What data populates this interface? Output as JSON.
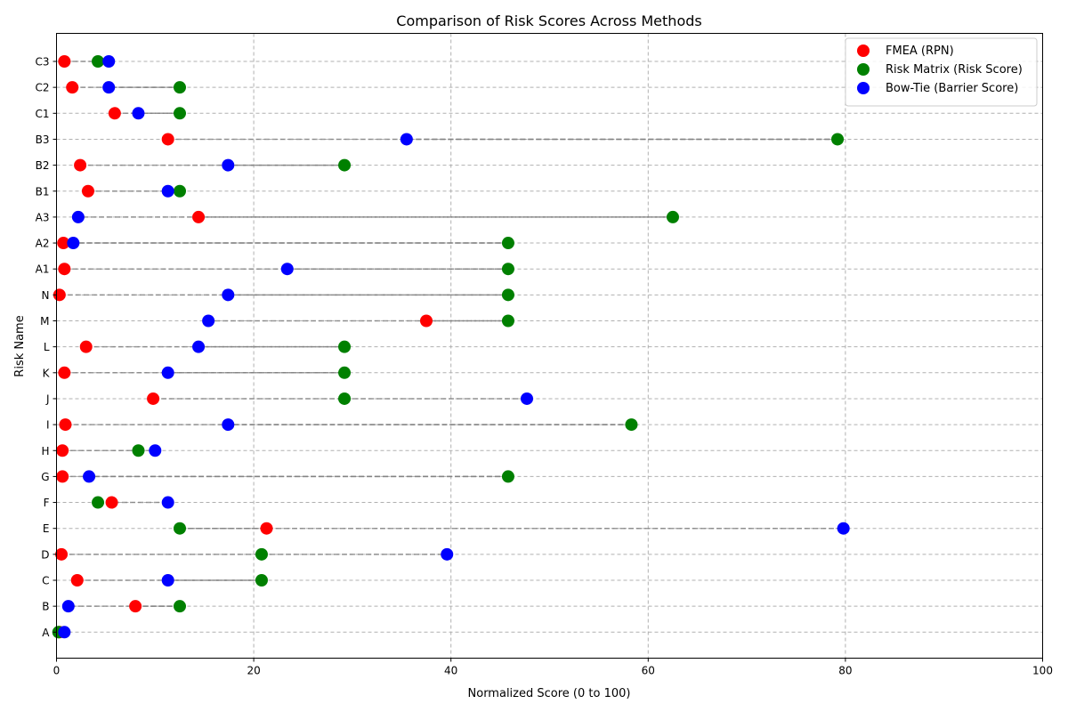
{
  "chart_data": {
    "type": "scatter",
    "title": "Comparison of Risk Scores Across Methods",
    "xlabel": "Normalized Score (0 to 100)",
    "ylabel": "Risk Name",
    "xlim": [
      0,
      100
    ],
    "xticks": [
      0,
      20,
      40,
      60,
      80,
      100
    ],
    "grid": true,
    "legend_position": "top-right",
    "categories": [
      "A",
      "B",
      "C",
      "D",
      "E",
      "F",
      "G",
      "H",
      "I",
      "J",
      "K",
      "L",
      "M",
      "N",
      "A1",
      "A2",
      "A3",
      "B1",
      "B2",
      "B3",
      "C1",
      "C2",
      "C3"
    ],
    "series": [
      {
        "name": "FMEA (RPN)",
        "color": "#ff0000",
        "values": [
          0.3,
          8.0,
          2.1,
          0.5,
          21.3,
          5.6,
          0.6,
          0.6,
          0.9,
          9.8,
          0.8,
          3.0,
          37.5,
          0.3,
          0.8,
          0.7,
          14.4,
          3.2,
          2.4,
          11.3,
          5.9,
          1.6,
          0.8
        ]
      },
      {
        "name": "Risk Matrix (Risk Score)",
        "color": "#008000",
        "values": [
          0.2,
          12.5,
          20.8,
          20.8,
          12.5,
          4.2,
          45.8,
          8.3,
          58.3,
          29.2,
          29.2,
          29.2,
          45.8,
          45.8,
          45.8,
          45.8,
          62.5,
          12.5,
          29.2,
          79.2,
          12.5,
          12.5,
          4.2
        ]
      },
      {
        "name": "Bow-Tie (Barrier Score)",
        "color": "#0000ff",
        "values": [
          0.8,
          1.2,
          11.3,
          39.6,
          79.8,
          11.3,
          3.3,
          10.0,
          17.4,
          47.7,
          11.3,
          14.4,
          15.4,
          17.4,
          23.4,
          1.7,
          2.2,
          11.3,
          17.4,
          35.5,
          8.3,
          5.3,
          5.3
        ]
      }
    ]
  }
}
